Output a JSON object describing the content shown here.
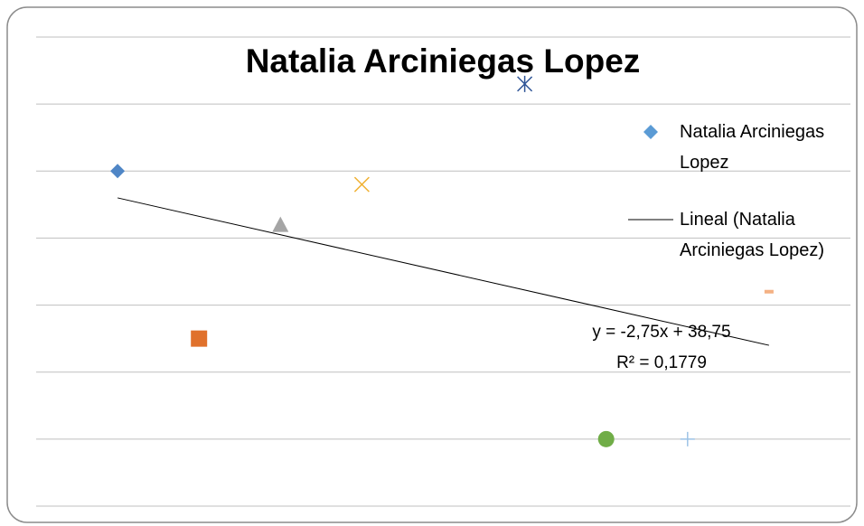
{
  "chart_data": {
    "type": "scatter",
    "title": "Natalia Arciniegas Lopez",
    "series": [
      {
        "name": "Natalia Arciniegas Lopez",
        "x": [
          1,
          2,
          3,
          4,
          6,
          7,
          8,
          9
        ],
        "values": [
          40,
          15,
          32,
          38,
          53,
          0,
          0,
          22
        ],
        "markers": [
          "diamond",
          "square",
          "triangle",
          "x",
          "star",
          "circle",
          "plus",
          "dash"
        ],
        "colors": [
          "#4f86c6",
          "#e0712c",
          "#a5a5a5",
          "#f0b030",
          "#2f5597",
          "#70ad47",
          "#9dc3e6",
          "#f4b183"
        ],
        "color": "#5b9bd5"
      }
    ],
    "trendline": {
      "name": "Lineal (Natalia Arciniegas Lopez)",
      "slope": -2.75,
      "intercept": 38.75,
      "equation": "y = -2,75x + 38,75",
      "r2_label": "R² = 0,1779",
      "color": "#000000"
    },
    "xlim": [
      0,
      10
    ],
    "ylim": [
      -10,
      60
    ],
    "yticks": [
      -10,
      0,
      10,
      20,
      30,
      40,
      50,
      60
    ],
    "grid": true,
    "legend": "right"
  }
}
